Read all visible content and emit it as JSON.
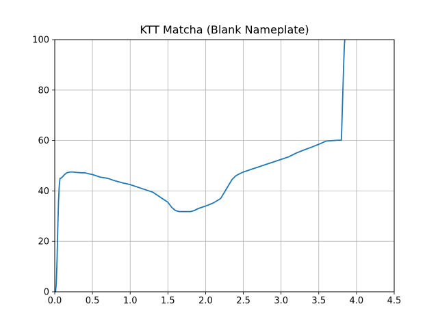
{
  "chart_data": {
    "type": "line",
    "title": "KTT Matcha (Blank Nameplate)",
    "xlabel": "",
    "ylabel": "",
    "xlim": [
      0,
      4.5
    ],
    "ylim": [
      0,
      100
    ],
    "grid": true,
    "x_ticks": [
      0.0,
      0.5,
      1.0,
      1.5,
      2.0,
      2.5,
      3.0,
      3.5,
      4.0,
      4.5
    ],
    "x_tick_labels": [
      "0.0",
      "0.5",
      "1.0",
      "1.5",
      "2.0",
      "2.5",
      "3.0",
      "3.5",
      "4.0",
      "4.5"
    ],
    "y_ticks": [
      0,
      20,
      40,
      60,
      80,
      100
    ],
    "y_tick_labels": [
      "0",
      "20",
      "40",
      "60",
      "80",
      "100"
    ],
    "series": [
      {
        "color": "#1f77b4",
        "x": [
          0.0,
          0.01,
          0.02,
          0.03,
          0.04,
          0.05,
          0.06,
          0.07,
          0.08,
          0.1,
          0.13,
          0.16,
          0.2,
          0.25,
          0.3,
          0.35,
          0.4,
          0.45,
          0.5,
          0.55,
          0.6,
          0.7,
          0.8,
          0.9,
          1.0,
          1.1,
          1.2,
          1.3,
          1.4,
          1.5,
          1.55,
          1.6,
          1.65,
          1.7,
          1.8,
          1.85,
          1.9,
          2.0,
          2.1,
          2.2,
          2.25,
          2.3,
          2.35,
          2.4,
          2.45,
          2.5,
          2.6,
          2.7,
          2.8,
          2.9,
          3.0,
          3.1,
          3.2,
          3.3,
          3.4,
          3.5,
          3.6,
          3.7,
          3.75,
          3.78,
          3.8,
          3.81,
          3.82,
          3.83,
          3.84,
          3.845
        ],
        "y": [
          0,
          0,
          3,
          12,
          25,
          36,
          42,
          45,
          45,
          45.5,
          46.5,
          47.2,
          47.5,
          47.5,
          47.3,
          47.2,
          47.2,
          46.8,
          46.5,
          46.0,
          45.5,
          45.0,
          44.0,
          43.2,
          42.5,
          41.5,
          40.5,
          39.5,
          37.5,
          35.5,
          33.5,
          32.2,
          31.8,
          31.8,
          31.8,
          32.2,
          33.0,
          34.0,
          35.2,
          37.0,
          39.5,
          42.0,
          44.5,
          46.0,
          46.8,
          47.5,
          48.5,
          49.5,
          50.5,
          51.5,
          52.5,
          53.5,
          55.0,
          56.2,
          57.3,
          58.5,
          59.8,
          60.0,
          60.1,
          60.1,
          60.2,
          70.0,
          80.0,
          90.0,
          98.0,
          100
        ]
      }
    ]
  }
}
